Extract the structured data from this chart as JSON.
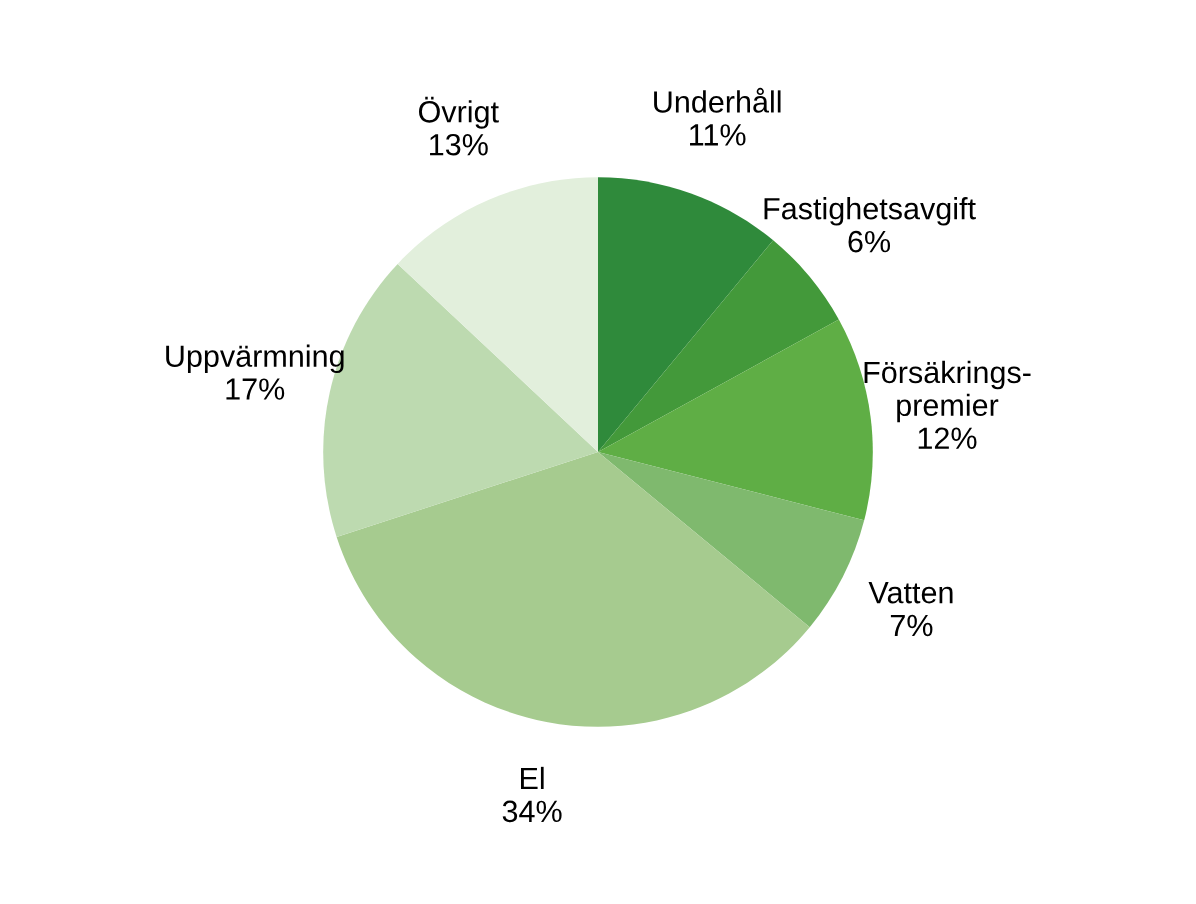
{
  "chart_data": {
    "type": "pie",
    "categories": [
      "Underhåll",
      "Fastighetsavgift",
      "Försäkrings-\npremier",
      "Vatten",
      "El",
      "Uppvärmning",
      "Övrigt"
    ],
    "values": [
      11,
      6,
      12,
      7,
      34,
      17,
      13
    ],
    "value_labels": [
      "11%",
      "6%",
      "12%",
      "7%",
      "34%",
      "17%",
      "13%"
    ],
    "colors": [
      "#2f8a3b",
      "#43993a",
      "#5fae45",
      "#7fb96e",
      "#a6cb8f",
      "#bddab0",
      "#e2efdc"
    ],
    "legend": false
  }
}
